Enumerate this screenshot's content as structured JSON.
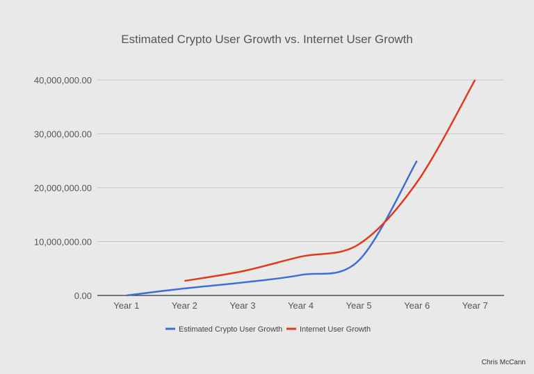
{
  "chart_data": {
    "type": "line",
    "title": "Estimated Crypto User Growth vs. Internet User Growth",
    "categories": [
      "Year 1",
      "Year 2",
      "Year 3",
      "Year 4",
      "Year 5",
      "Year 6",
      "Year 7"
    ],
    "series": [
      {
        "name": "Estimated Crypto User Growth",
        "color": "#3c6fd6",
        "values": [
          0,
          1300000,
          2400000,
          3800000,
          6500000,
          25000000,
          null
        ]
      },
      {
        "name": "Internet User Growth",
        "color": "#e2381e",
        "values": [
          null,
          2700000,
          4500000,
          7200000,
          9500000,
          21000000,
          40000000
        ]
      }
    ],
    "ylim": [
      0,
      40000000
    ],
    "yticks": [
      0,
      10000000,
      20000000,
      30000000,
      40000000
    ],
    "ytick_labels": [
      "0.00",
      "10,000,000.00",
      "20,000,000.00",
      "30,000,000.00",
      "40,000,000.00"
    ],
    "grid": true,
    "legend": "bottom"
  },
  "credit": "Chris McCann"
}
